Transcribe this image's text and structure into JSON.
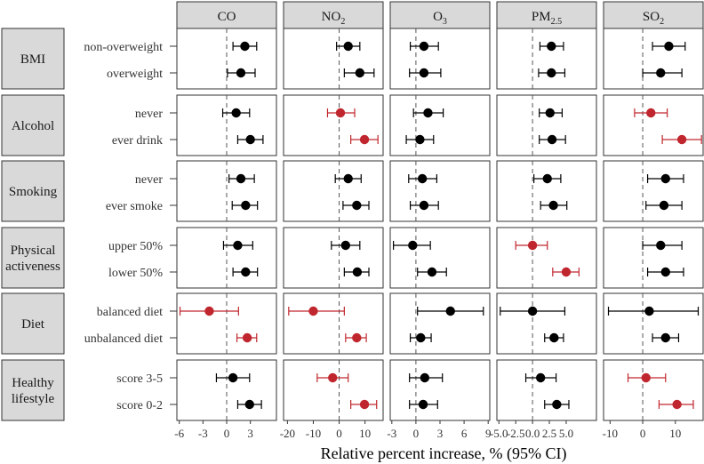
{
  "chart_data": {
    "type": "forest",
    "xlabel": "Relative percent increase, % (95% CI)",
    "colors": {
      "significant": "#c0262d",
      "nonsignificant": "#000000",
      "strip": "#d9d9d9"
    },
    "panels": [
      {
        "id": "co",
        "label": "CO",
        "xlim": [
          -6.3,
          6.3
        ],
        "ticks": [
          -6,
          -3,
          0,
          3
        ],
        "tick_labels": [
          "-6",
          "-3",
          "0",
          "3"
        ]
      },
      {
        "id": "no2",
        "label": "NO",
        "label_sub": "2",
        "xlim": [
          -21.5,
          17
        ],
        "ticks": [
          -20,
          -10,
          0,
          10
        ],
        "tick_labels": [
          "-20",
          "-10",
          "0",
          "10"
        ]
      },
      {
        "id": "o3",
        "label": "O",
        "label_sub": "3",
        "xlim": [
          -3.2,
          9.2
        ],
        "ticks": [
          -3,
          0,
          3,
          6,
          9
        ],
        "tick_labels": [
          "-3",
          "0",
          "3",
          "6",
          "9"
        ]
      },
      {
        "id": "pm25",
        "label": "PM",
        "label_sub": "2.5",
        "xlim": [
          -5.3,
          9.5
        ],
        "ticks": [
          -5,
          -2.5,
          0,
          2.5,
          5
        ],
        "tick_labels": [
          "-5.0",
          "-2.5",
          "0.0",
          "2.5",
          "5.0"
        ]
      },
      {
        "id": "so2",
        "label": "SO",
        "label_sub": "2",
        "xlim": [
          -12,
          18.5
        ],
        "ticks": [
          -10,
          0,
          10
        ],
        "tick_labels": [
          "-10",
          "0",
          "10"
        ]
      }
    ],
    "rows": [
      {
        "label": "BMI",
        "categories": [
          "non-overweight",
          "overweight"
        ]
      },
      {
        "label": "Alcohol",
        "categories": [
          "never",
          "ever drink"
        ]
      },
      {
        "label": "Smoking",
        "categories": [
          "never",
          "ever smoke"
        ]
      },
      {
        "label": "Physical activeness",
        "label_lines": [
          "Physical",
          "activeness"
        ],
        "categories": [
          "upper 50%",
          "lower 50%"
        ]
      },
      {
        "label": "Diet",
        "categories": [
          "balanced diet",
          "unbalanced diet"
        ]
      },
      {
        "label": "Healthy lifestyle",
        "label_lines": [
          "Healthy",
          "lifestyle"
        ],
        "categories": [
          "score 3-5",
          "score 0-2"
        ]
      }
    ],
    "estimates": {
      "co": [
        [
          [
            2.3,
            0.8,
            3.8,
            false
          ],
          [
            1.8,
            0.1,
            3.6,
            false
          ]
        ],
        [
          [
            1.2,
            -0.5,
            2.9,
            false
          ],
          [
            3.0,
            1.4,
            4.6,
            false
          ]
        ],
        [
          [
            1.8,
            0.3,
            3.5,
            false
          ],
          [
            2.4,
            0.7,
            3.9,
            false
          ]
        ],
        [
          [
            1.4,
            -0.4,
            3.3,
            false
          ],
          [
            2.4,
            0.8,
            3.9,
            false
          ]
        ],
        [
          [
            -2.2,
            -5.9,
            1.5,
            true
          ],
          [
            2.6,
            1.3,
            3.8,
            true
          ]
        ],
        [
          [
            0.8,
            -1.3,
            2.9,
            false
          ],
          [
            2.9,
            1.4,
            4.4,
            false
          ]
        ]
      ],
      "no2": [
        [
          [
            3.5,
            -1.0,
            8.0,
            false
          ],
          [
            8.0,
            2.0,
            13.5,
            false
          ]
        ],
        [
          [
            0.5,
            -4.5,
            6.0,
            true
          ],
          [
            9.8,
            4.5,
            15.0,
            true
          ]
        ],
        [
          [
            3.5,
            -1.5,
            8.5,
            false
          ],
          [
            6.8,
            1.5,
            11.5,
            false
          ]
        ],
        [
          [
            2.5,
            -3.0,
            8.0,
            false
          ],
          [
            7.0,
            2.0,
            11.5,
            false
          ]
        ],
        [
          [
            -10.0,
            -19.5,
            2.0,
            true
          ],
          [
            6.8,
            2.5,
            10.5,
            true
          ]
        ],
        [
          [
            -2.5,
            -8.5,
            3.5,
            true
          ],
          [
            9.8,
            4.5,
            14.5,
            true
          ]
        ]
      ],
      "o3": [
        [
          [
            1.0,
            -0.7,
            2.8,
            false
          ],
          [
            1.0,
            -0.8,
            3.1,
            false
          ]
        ],
        [
          [
            1.5,
            -0.3,
            3.4,
            false
          ],
          [
            0.5,
            -1.2,
            2.2,
            false
          ]
        ],
        [
          [
            0.8,
            -0.9,
            2.6,
            false
          ],
          [
            1.0,
            -0.7,
            2.8,
            false
          ]
        ],
        [
          [
            -0.4,
            -2.8,
            1.8,
            false
          ],
          [
            2.0,
            0.2,
            3.8,
            false
          ]
        ],
        [
          [
            4.3,
            0.2,
            8.4,
            false
          ],
          [
            0.6,
            -0.7,
            1.9,
            false
          ]
        ],
        [
          [
            1.1,
            -0.8,
            3.3,
            false
          ],
          [
            0.9,
            -0.8,
            2.7,
            false
          ]
        ]
      ],
      "pm25": [
        [
          [
            2.8,
            1.1,
            4.6,
            false
          ],
          [
            2.8,
            0.9,
            4.8,
            false
          ]
        ],
        [
          [
            2.6,
            1.0,
            4.4,
            false
          ],
          [
            2.9,
            1.0,
            4.9,
            false
          ]
        ],
        [
          [
            2.2,
            0.2,
            4.2,
            false
          ],
          [
            3.1,
            1.2,
            5.1,
            false
          ]
        ],
        [
          [
            0.0,
            -2.5,
            2.2,
            true
          ],
          [
            5.0,
            3.0,
            6.9,
            true
          ]
        ],
        [
          [
            0.0,
            -4.8,
            4.8,
            false
          ],
          [
            3.2,
            1.8,
            4.6,
            false
          ]
        ],
        [
          [
            1.2,
            -1.0,
            3.5,
            false
          ],
          [
            3.6,
            1.8,
            5.4,
            false
          ]
        ]
      ],
      "so2": [
        [
          [
            8.0,
            3.0,
            13.0,
            false
          ],
          [
            5.5,
            0.0,
            12.0,
            false
          ]
        ],
        [
          [
            2.5,
            -2.5,
            7.5,
            true
          ],
          [
            12.0,
            6.0,
            18.0,
            true
          ]
        ],
        [
          [
            7.0,
            1.5,
            12.5,
            false
          ],
          [
            6.5,
            1.0,
            12.0,
            false
          ]
        ],
        [
          [
            5.5,
            0.0,
            12.0,
            false
          ],
          [
            7.0,
            1.5,
            12.5,
            false
          ]
        ],
        [
          [
            2.0,
            -10.5,
            17.0,
            false
          ],
          [
            7.0,
            3.0,
            11.0,
            false
          ]
        ],
        [
          [
            1.0,
            -4.5,
            7.0,
            true
          ],
          [
            10.5,
            5.0,
            15.5,
            true
          ]
        ]
      ]
    }
  }
}
